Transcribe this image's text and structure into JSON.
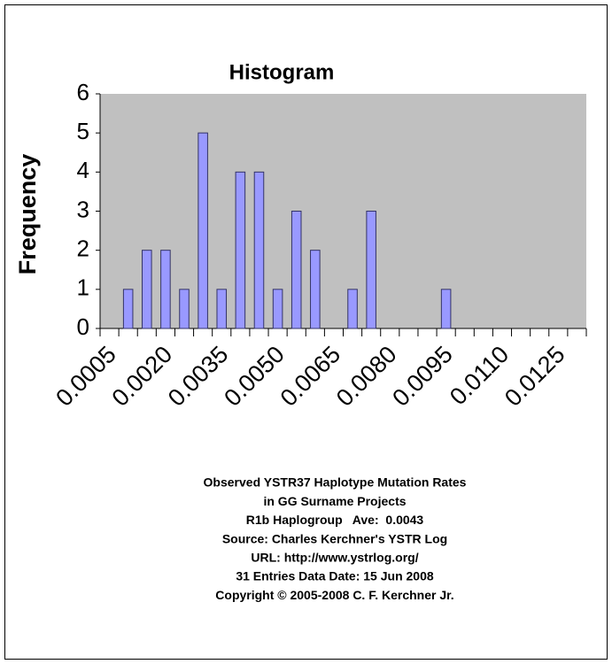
{
  "chart_data": {
    "type": "bar",
    "title": "Histogram",
    "y_label": "Frequency",
    "categories": [
      "0.0005",
      null,
      null,
      "0.0020",
      null,
      null,
      "0.0035",
      null,
      null,
      "0.0050",
      null,
      null,
      "0.0065",
      null,
      null,
      "0.0080",
      null,
      null,
      "0.0095",
      null,
      null,
      "0.0110",
      null,
      null,
      "0.0125",
      null
    ],
    "values": [
      0,
      1,
      2,
      2,
      1,
      5,
      1,
      4,
      4,
      1,
      3,
      2,
      0,
      1,
      3,
      0,
      0,
      0,
      1,
      0,
      0,
      0,
      0,
      0,
      0,
      0
    ],
    "color": "#9999ff",
    "plot_background": "#c0c0c0",
    "ylim": [
      0,
      6
    ],
    "yticks": [
      0,
      1,
      2,
      3,
      4,
      5,
      6
    ],
    "grid": false,
    "notes": [
      "Observed YSTR37 Haplotype Mutation Rates",
      "in GG Surname Projects",
      "R1b Haplogroup   Ave:  0.0043",
      "Source: Charles Kerchner's YSTR Log",
      "URL: http://www.ystrlog.org/",
      "31 Entries Data Date: 15 Jun 2008",
      "Copyright © 2005-2008 C. F. Kerchner Jr."
    ]
  }
}
